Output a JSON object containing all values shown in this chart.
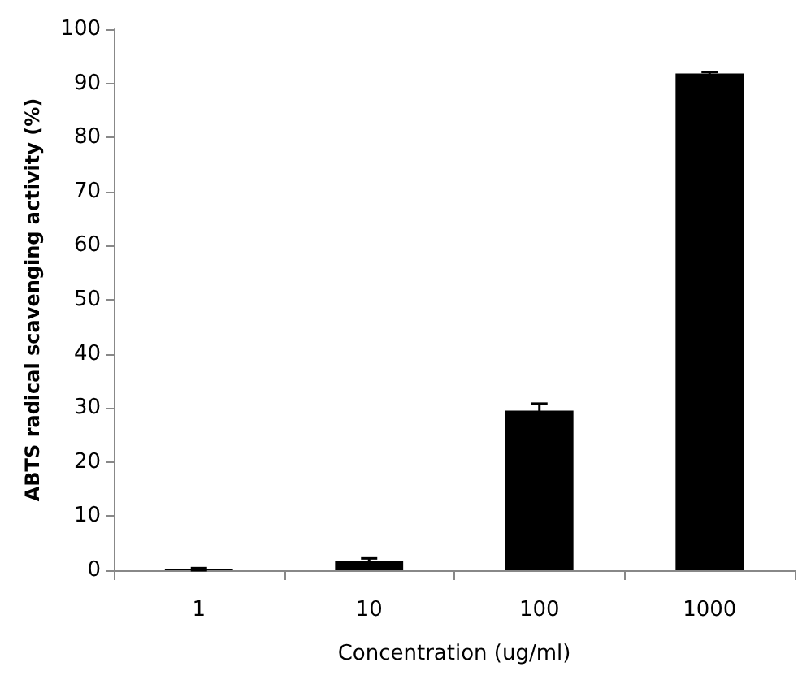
{
  "chart_data": {
    "type": "bar",
    "xlabel": "Concentration (ug/ml)",
    "ylabel": "ABTS radical scavenging activity (%)",
    "categories": [
      "1",
      "10",
      "100",
      "1000"
    ],
    "values": [
      0.2,
      1.8,
      29.5,
      91.8
    ],
    "errors": [
      0.2,
      0.4,
      1.3,
      0.3
    ],
    "color": "#000000",
    "ylim": [
      0,
      100
    ],
    "yticks": [
      0,
      10,
      20,
      30,
      40,
      50,
      60,
      70,
      80,
      90,
      100
    ],
    "grid": false
  }
}
